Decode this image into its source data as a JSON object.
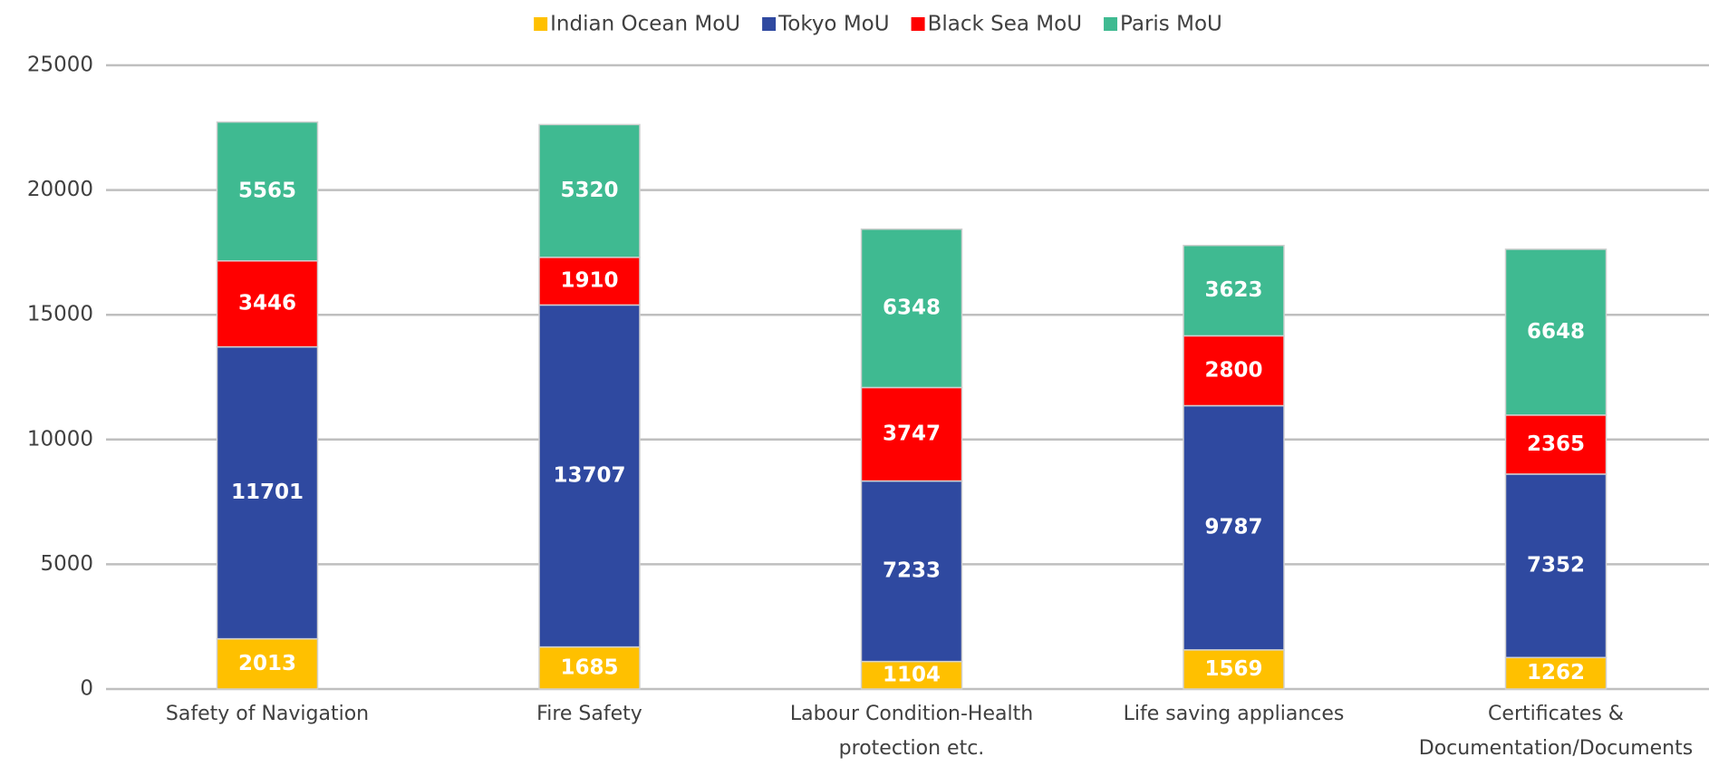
{
  "chart_data": {
    "type": "stacked_bar",
    "categories": [
      "Safety of Navigation",
      "Fire Safety",
      "Labour Condition-Health protection etc.",
      "Life saving appliances",
      "Certificates & Documentation/Documents"
    ],
    "series": [
      {
        "name": "Indian Ocean MoU",
        "color": "#ffc000",
        "values": [
          2013,
          1685,
          1104,
          1569,
          1262
        ]
      },
      {
        "name": "Tokyo MoU",
        "color": "#2f49a0",
        "values": [
          11701,
          13707,
          7233,
          9787,
          7352
        ]
      },
      {
        "name": "Black Sea MoU",
        "color": "#ff0000",
        "values": [
          3446,
          1910,
          3747,
          2800,
          2365
        ]
      },
      {
        "name": "Paris MoU",
        "color": "#3fba91",
        "values": [
          5565,
          5320,
          6348,
          3623,
          6648
        ]
      }
    ],
    "ylim": [
      0,
      25000
    ],
    "yticks": [
      0,
      5000,
      10000,
      15000,
      20000,
      25000
    ],
    "grid": true,
    "legend": "top"
  }
}
